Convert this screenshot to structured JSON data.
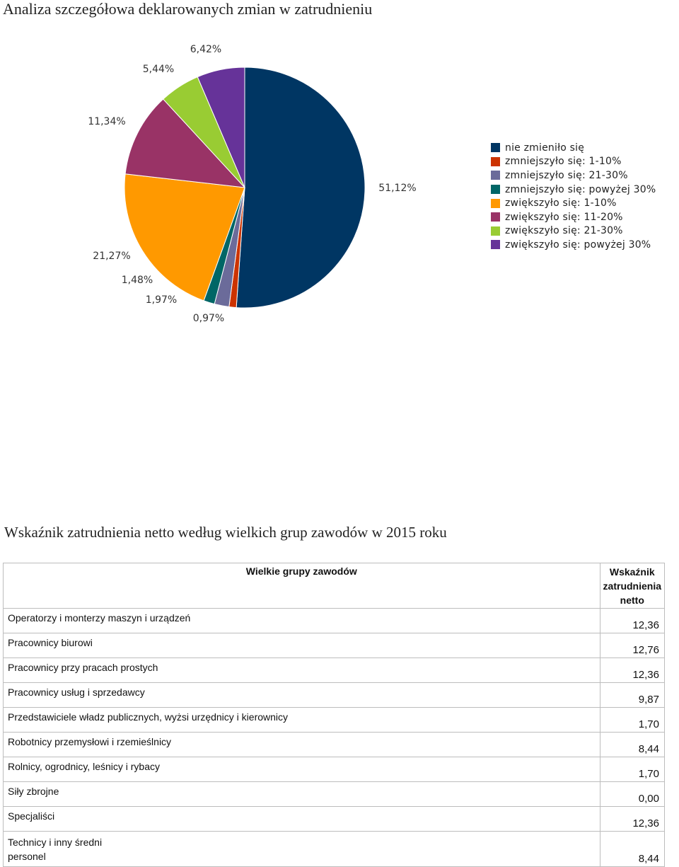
{
  "titles": {
    "main": "Analiza szczegółowa deklarowanych zmian w zatrudnieniu",
    "table": "Wskaźnik zatrudnienia netto według wielkich grup zawodów w 2015 roku"
  },
  "chart_data": {
    "type": "pie",
    "title": "",
    "slices": [
      {
        "label": "nie zmieniło się",
        "value": 51.12,
        "display": "51,12%",
        "color": "#003663"
      },
      {
        "label": "zmniejszyło się: 1-10%",
        "value": 0.97,
        "display": "0,97%",
        "color": "#cc3300"
      },
      {
        "label": "zmniejszyło się: 21-30%",
        "value": 1.97,
        "display": "1,97%",
        "color": "#6b6b9a"
      },
      {
        "label": "zmniejszyło się: powyżej 30%",
        "value": 1.48,
        "display": "1,48%",
        "color": "#006666"
      },
      {
        "label": "zwiększyło się: 1-10%",
        "value": 21.27,
        "display": "21,27%",
        "color": "#ff9900"
      },
      {
        "label": "zwiększyło się: 11-20%",
        "value": 11.34,
        "display": "11,34%",
        "color": "#993366"
      },
      {
        "label": "zwiększyło się: 21-30%",
        "value": 5.44,
        "display": "5,44%",
        "color": "#99cc33"
      },
      {
        "label": "zwiększyło się: powyżej 30%",
        "value": 6.42,
        "display": "6,42%",
        "color": "#663399"
      }
    ],
    "legend_position": "right"
  },
  "table": {
    "headers": {
      "name": "Wielkie grupy zawodów",
      "value": "Wskaźnik zatrudnienia netto"
    },
    "rows": [
      {
        "name": "Operatorzy i monterzy maszyn i urządzeń",
        "value": "12,36"
      },
      {
        "name": "Pracownicy biurowi",
        "value": "12,76"
      },
      {
        "name": "Pracownicy przy pracach prostych",
        "value": "12,36"
      },
      {
        "name": "Pracownicy usług i sprzedawcy",
        "value": "9,87"
      },
      {
        "name": "Przedstawiciele władz publicznych, wyżsi urzędnicy i kierownicy",
        "value": "1,70"
      },
      {
        "name": "Robotnicy przemysłowi i rzemieślnicy",
        "value": "8,44"
      },
      {
        "name": "Rolnicy, ogrodnicy, leśnicy i rybacy",
        "value": "1,70"
      },
      {
        "name": "Siły zbrojne",
        "value": "0,00"
      },
      {
        "name": "Specjaliści",
        "value": "12,36"
      },
      {
        "name": "Technicy i inny średni personel",
        "value": "8,44"
      }
    ]
  }
}
